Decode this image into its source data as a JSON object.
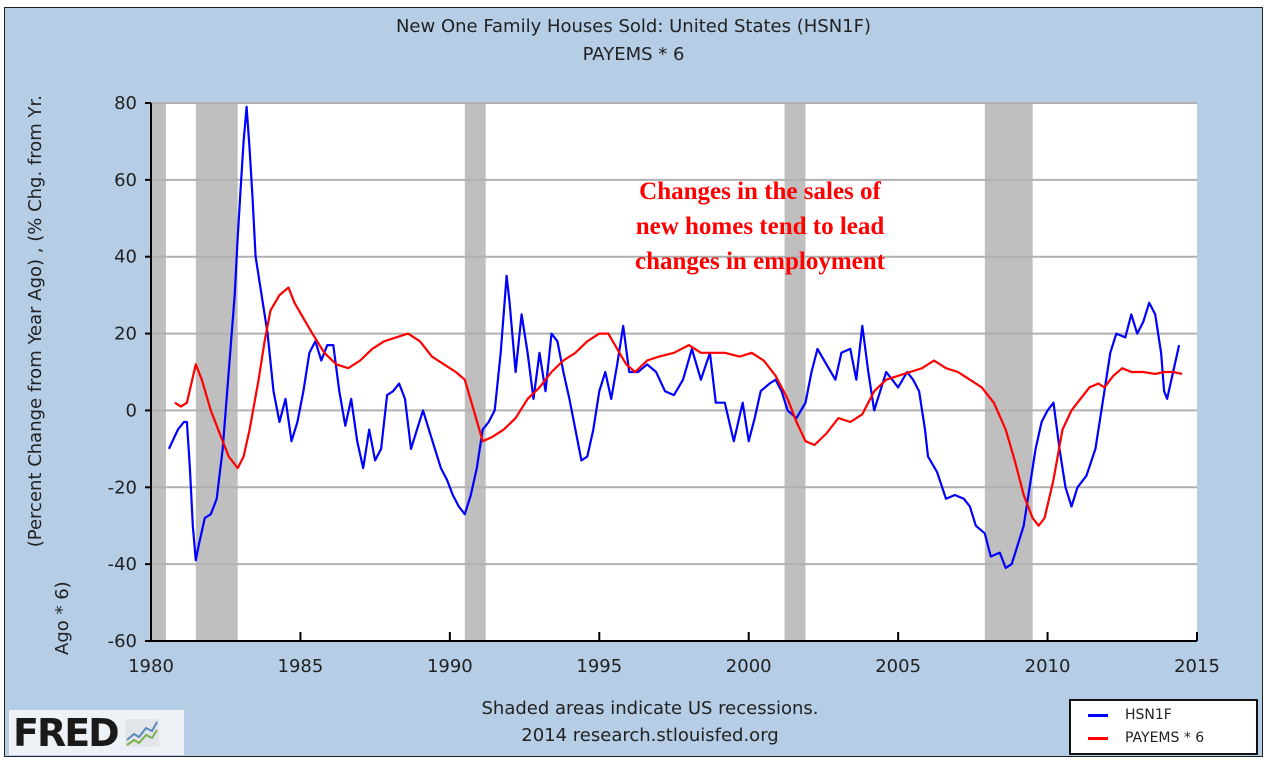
{
  "header": {
    "title_line1": "New One Family Houses Sold: United States (HSN1F)",
    "title_line2": "PAYEMS * 6"
  },
  "footer": {
    "note_line1": "Shaded areas indicate US recessions.",
    "note_line2": "2014 research.stlouisfed.org"
  },
  "logo": {
    "text": "FRED",
    "icon": "line-chart-icon"
  },
  "annotation": {
    "line1": "Changes in the sales of",
    "line2": "new homes tend to lead",
    "line3": "changes in employment",
    "color": "#ff0000"
  },
  "chart_data": {
    "type": "line",
    "title": "New One Family Houses Sold: United States (HSN1F) / PAYEMS * 6",
    "xlabel": "",
    "ylabel_line1": "(Percent Change from Year Ago) , (% Chg. from Yr.",
    "ylabel_line2": "Ago * 6)",
    "xlim": [
      1980,
      2015
    ],
    "ylim": [
      -60,
      80
    ],
    "x_ticks": [
      1980,
      1985,
      1990,
      1995,
      2000,
      2005,
      2010,
      2015
    ],
    "x_tick_labels": [
      "1980",
      "1985",
      "1990",
      "1995",
      "2000",
      "2005",
      "2010",
      "2015"
    ],
    "y_ticks": [
      -60,
      -40,
      -20,
      0,
      20,
      40,
      60,
      80
    ],
    "y_tick_labels": [
      "-60",
      "-40",
      "-20",
      "0",
      "20",
      "40",
      "60",
      "80"
    ],
    "grid": true,
    "legend_position": "bottom-right",
    "recessions": [
      [
        1980.0,
        1980.5
      ],
      [
        1981.5,
        1982.9
      ],
      [
        1990.5,
        1991.2
      ],
      [
        2001.2,
        2001.9
      ],
      [
        2007.9,
        2009.5
      ]
    ],
    "recession_color": "#bfbfbf",
    "series": [
      {
        "name": "HSN1F",
        "color": "#0000ff",
        "points": [
          [
            1980.6,
            -10
          ],
          [
            1980.9,
            -5
          ],
          [
            1981.1,
            -3
          ],
          [
            1981.2,
            -3
          ],
          [
            1981.3,
            -15
          ],
          [
            1981.4,
            -30
          ],
          [
            1981.5,
            -39
          ],
          [
            1981.6,
            -35
          ],
          [
            1981.8,
            -28
          ],
          [
            1982.0,
            -27
          ],
          [
            1982.2,
            -23
          ],
          [
            1982.4,
            -10
          ],
          [
            1982.6,
            10
          ],
          [
            1982.8,
            30
          ],
          [
            1982.9,
            45
          ],
          [
            1983.0,
            58
          ],
          [
            1983.1,
            70
          ],
          [
            1983.2,
            79
          ],
          [
            1983.3,
            68
          ],
          [
            1983.4,
            55
          ],
          [
            1983.5,
            40
          ],
          [
            1983.7,
            30
          ],
          [
            1983.9,
            20
          ],
          [
            1984.1,
            5
          ],
          [
            1984.3,
            -3
          ],
          [
            1984.5,
            3
          ],
          [
            1984.7,
            -8
          ],
          [
            1984.9,
            -3
          ],
          [
            1985.1,
            5
          ],
          [
            1985.3,
            15
          ],
          [
            1985.5,
            18
          ],
          [
            1985.7,
            13
          ],
          [
            1985.9,
            17
          ],
          [
            1986.1,
            17
          ],
          [
            1986.3,
            5
          ],
          [
            1986.5,
            -4
          ],
          [
            1986.7,
            3
          ],
          [
            1986.9,
            -8
          ],
          [
            1987.1,
            -15
          ],
          [
            1987.3,
            -5
          ],
          [
            1987.5,
            -13
          ],
          [
            1987.7,
            -10
          ],
          [
            1987.9,
            4
          ],
          [
            1988.1,
            5
          ],
          [
            1988.3,
            7
          ],
          [
            1988.5,
            3
          ],
          [
            1988.7,
            -10
          ],
          [
            1988.9,
            -5
          ],
          [
            1989.1,
            0
          ],
          [
            1989.3,
            -5
          ],
          [
            1989.5,
            -10
          ],
          [
            1989.7,
            -15
          ],
          [
            1989.9,
            -18
          ],
          [
            1990.1,
            -22
          ],
          [
            1990.3,
            -25
          ],
          [
            1990.5,
            -27
          ],
          [
            1990.7,
            -22
          ],
          [
            1990.9,
            -15
          ],
          [
            1991.1,
            -5
          ],
          [
            1991.3,
            -3
          ],
          [
            1991.5,
            0
          ],
          [
            1991.7,
            15
          ],
          [
            1991.9,
            35
          ],
          [
            1992.0,
            28
          ],
          [
            1992.2,
            10
          ],
          [
            1992.4,
            25
          ],
          [
            1992.6,
            15
          ],
          [
            1992.8,
            3
          ],
          [
            1993.0,
            15
          ],
          [
            1993.2,
            5
          ],
          [
            1993.4,
            20
          ],
          [
            1993.6,
            18
          ],
          [
            1993.8,
            10
          ],
          [
            1994.0,
            3
          ],
          [
            1994.2,
            -5
          ],
          [
            1994.4,
            -13
          ],
          [
            1994.6,
            -12
          ],
          [
            1994.8,
            -5
          ],
          [
            1995.0,
            5
          ],
          [
            1995.2,
            10
          ],
          [
            1995.4,
            3
          ],
          [
            1995.6,
            12
          ],
          [
            1995.8,
            22
          ],
          [
            1996.0,
            10
          ],
          [
            1996.3,
            10
          ],
          [
            1996.6,
            12
          ],
          [
            1996.9,
            10
          ],
          [
            1997.2,
            5
          ],
          [
            1997.5,
            4
          ],
          [
            1997.8,
            8
          ],
          [
            1998.1,
            16
          ],
          [
            1998.4,
            8
          ],
          [
            1998.7,
            15
          ],
          [
            1998.9,
            2
          ],
          [
            1999.2,
            2
          ],
          [
            1999.5,
            -8
          ],
          [
            1999.8,
            2
          ],
          [
            2000.0,
            -8
          ],
          [
            2000.2,
            -2
          ],
          [
            2000.4,
            5
          ],
          [
            2000.7,
            7
          ],
          [
            2000.9,
            8
          ],
          [
            2001.1,
            5
          ],
          [
            2001.3,
            0
          ],
          [
            2001.6,
            -2
          ],
          [
            2001.9,
            2
          ],
          [
            2002.1,
            10
          ],
          [
            2002.3,
            16
          ],
          [
            2002.6,
            12
          ],
          [
            2002.9,
            8
          ],
          [
            2003.1,
            15
          ],
          [
            2003.4,
            16
          ],
          [
            2003.6,
            8
          ],
          [
            2003.8,
            22
          ],
          [
            2004.0,
            10
          ],
          [
            2004.2,
            0
          ],
          [
            2004.4,
            5
          ],
          [
            2004.6,
            10
          ],
          [
            2004.8,
            8
          ],
          [
            2005.0,
            6
          ],
          [
            2005.3,
            10
          ],
          [
            2005.5,
            8
          ],
          [
            2005.7,
            5
          ],
          [
            2005.9,
            -5
          ],
          [
            2006.0,
            -12
          ],
          [
            2006.3,
            -16
          ],
          [
            2006.6,
            -23
          ],
          [
            2006.9,
            -22
          ],
          [
            2007.2,
            -23
          ],
          [
            2007.4,
            -25
          ],
          [
            2007.6,
            -30
          ],
          [
            2007.9,
            -32
          ],
          [
            2008.1,
            -38
          ],
          [
            2008.4,
            -37
          ],
          [
            2008.6,
            -41
          ],
          [
            2008.8,
            -40
          ],
          [
            2009.0,
            -35
          ],
          [
            2009.2,
            -30
          ],
          [
            2009.4,
            -20
          ],
          [
            2009.6,
            -10
          ],
          [
            2009.8,
            -3
          ],
          [
            2010.0,
            0
          ],
          [
            2010.2,
            2
          ],
          [
            2010.4,
            -10
          ],
          [
            2010.6,
            -20
          ],
          [
            2010.8,
            -25
          ],
          [
            2011.0,
            -20
          ],
          [
            2011.3,
            -17
          ],
          [
            2011.6,
            -10
          ],
          [
            2011.9,
            5
          ],
          [
            2012.1,
            15
          ],
          [
            2012.3,
            20
          ],
          [
            2012.6,
            19
          ],
          [
            2012.8,
            25
          ],
          [
            2013.0,
            20
          ],
          [
            2013.2,
            23
          ],
          [
            2013.4,
            28
          ],
          [
            2013.6,
            25
          ],
          [
            2013.8,
            15
          ],
          [
            2013.9,
            5
          ],
          [
            2014.0,
            3
          ],
          [
            2014.2,
            10
          ],
          [
            2014.4,
            17
          ]
        ]
      },
      {
        "name": "PAYEMS * 6",
        "color": "#ff0000",
        "points": [
          [
            1980.8,
            2
          ],
          [
            1981.0,
            1
          ],
          [
            1981.2,
            2
          ],
          [
            1981.5,
            12
          ],
          [
            1981.7,
            8
          ],
          [
            1982.0,
            0
          ],
          [
            1982.3,
            -6
          ],
          [
            1982.6,
            -12
          ],
          [
            1982.9,
            -15
          ],
          [
            1983.1,
            -12
          ],
          [
            1983.3,
            -5
          ],
          [
            1983.6,
            8
          ],
          [
            1983.8,
            18
          ],
          [
            1984.0,
            26
          ],
          [
            1984.3,
            30
          ],
          [
            1984.6,
            32
          ],
          [
            1984.8,
            28
          ],
          [
            1985.1,
            24
          ],
          [
            1985.4,
            20
          ],
          [
            1985.8,
            15
          ],
          [
            1986.2,
            12
          ],
          [
            1986.6,
            11
          ],
          [
            1987.0,
            13
          ],
          [
            1987.4,
            16
          ],
          [
            1987.8,
            18
          ],
          [
            1988.2,
            19
          ],
          [
            1988.6,
            20
          ],
          [
            1989.0,
            18
          ],
          [
            1989.4,
            14
          ],
          [
            1989.8,
            12
          ],
          [
            1990.2,
            10
          ],
          [
            1990.5,
            8
          ],
          [
            1990.8,
            0
          ],
          [
            1991.1,
            -8
          ],
          [
            1991.4,
            -7
          ],
          [
            1991.8,
            -5
          ],
          [
            1992.2,
            -2
          ],
          [
            1992.6,
            3
          ],
          [
            1993.0,
            6
          ],
          [
            1993.4,
            10
          ],
          [
            1993.8,
            13
          ],
          [
            1994.2,
            15
          ],
          [
            1994.6,
            18
          ],
          [
            1995.0,
            20
          ],
          [
            1995.3,
            20
          ],
          [
            1995.6,
            16
          ],
          [
            1995.9,
            12
          ],
          [
            1996.2,
            10
          ],
          [
            1996.6,
            13
          ],
          [
            1997.0,
            14
          ],
          [
            1997.5,
            15
          ],
          [
            1998.0,
            17
          ],
          [
            1998.4,
            15
          ],
          [
            1998.8,
            15
          ],
          [
            1999.2,
            15
          ],
          [
            1999.7,
            14
          ],
          [
            2000.1,
            15
          ],
          [
            2000.5,
            13
          ],
          [
            2000.9,
            9
          ],
          [
            2001.3,
            3
          ],
          [
            2001.6,
            -3
          ],
          [
            2001.9,
            -8
          ],
          [
            2002.2,
            -9
          ],
          [
            2002.6,
            -6
          ],
          [
            2003.0,
            -2
          ],
          [
            2003.4,
            -3
          ],
          [
            2003.8,
            -1
          ],
          [
            2004.2,
            5
          ],
          [
            2004.6,
            8
          ],
          [
            2005.0,
            9
          ],
          [
            2005.4,
            10
          ],
          [
            2005.8,
            11
          ],
          [
            2006.2,
            13
          ],
          [
            2006.6,
            11
          ],
          [
            2007.0,
            10
          ],
          [
            2007.4,
            8
          ],
          [
            2007.8,
            6
          ],
          [
            2008.2,
            2
          ],
          [
            2008.6,
            -5
          ],
          [
            2008.9,
            -13
          ],
          [
            2009.2,
            -22
          ],
          [
            2009.5,
            -28
          ],
          [
            2009.7,
            -30
          ],
          [
            2009.9,
            -28
          ],
          [
            2010.2,
            -18
          ],
          [
            2010.5,
            -5
          ],
          [
            2010.8,
            0
          ],
          [
            2011.1,
            3
          ],
          [
            2011.4,
            6
          ],
          [
            2011.7,
            7
          ],
          [
            2011.9,
            6
          ],
          [
            2012.2,
            9
          ],
          [
            2012.5,
            11
          ],
          [
            2012.8,
            10
          ],
          [
            2013.2,
            10
          ],
          [
            2013.6,
            9.5
          ],
          [
            2013.9,
            10
          ],
          [
            2014.2,
            10
          ],
          [
            2014.5,
            9.5
          ]
        ]
      }
    ]
  }
}
